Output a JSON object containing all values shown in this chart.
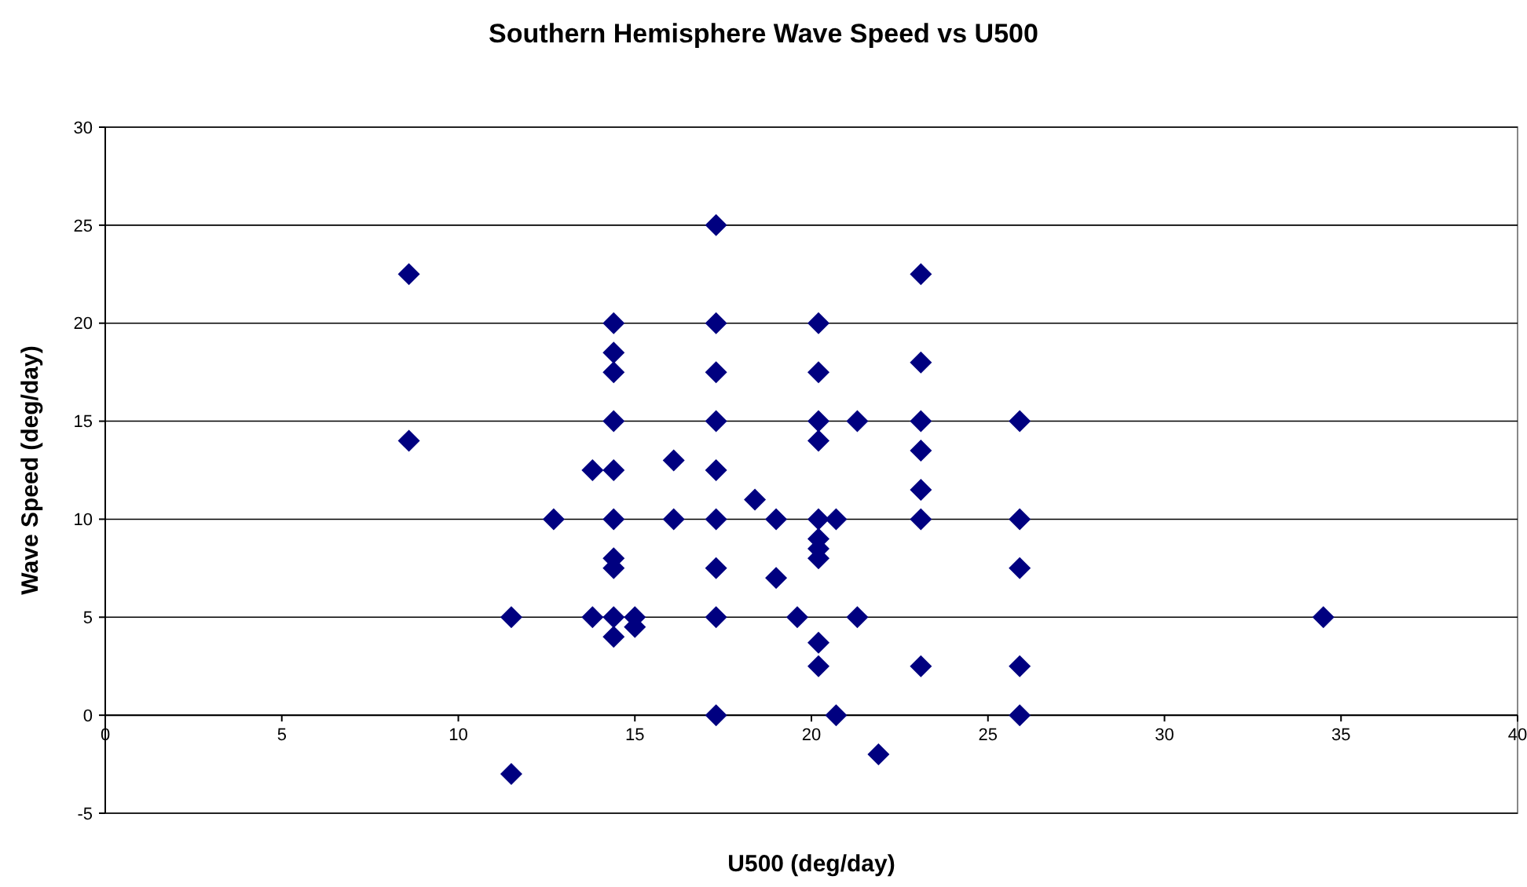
{
  "chart_data": {
    "type": "scatter",
    "title": "Southern Hemisphere Wave Speed vs U500",
    "xlabel": "U500 (deg/day)",
    "ylabel": "Wave Speed (deg/day)",
    "xlim": [
      0,
      40
    ],
    "xticks": [
      0,
      5,
      10,
      15,
      20,
      25,
      30,
      35,
      40
    ],
    "ylim": [
      -5,
      30
    ],
    "yticks": [
      -5,
      0,
      5,
      10,
      15,
      20,
      25,
      30
    ],
    "grid": "y",
    "marker": "diamond",
    "series": [
      {
        "color": "#000080",
        "x": [
          8.6,
          8.6,
          11.5,
          11.5,
          12.7,
          13.8,
          13.8,
          14.4,
          14.4,
          14.4,
          14.4,
          14.4,
          14.4,
          14.4,
          14.4,
          14.4,
          14.4,
          15.0,
          15.0,
          16.1,
          16.1,
          17.3,
          17.3,
          17.3,
          17.3,
          17.3,
          17.3,
          17.3,
          17.3,
          17.3,
          18.4,
          19.0,
          19.0,
          19.6,
          20.2,
          20.2,
          20.2,
          20.2,
          20.2,
          20.2,
          20.2,
          20.2,
          20.2,
          20.2,
          20.7,
          20.7,
          21.3,
          21.3,
          21.9,
          23.1,
          23.1,
          23.1,
          23.1,
          23.1,
          23.1,
          23.1,
          25.9,
          25.9,
          25.9,
          25.9,
          25.9,
          34.5
        ],
        "values": [
          22.5,
          14,
          5,
          -3,
          10,
          12.5,
          5,
          20,
          18.5,
          17.5,
          15,
          12.5,
          10,
          8,
          7.5,
          5,
          4,
          5,
          4.5,
          13,
          10,
          25,
          20,
          17.5,
          15,
          12.5,
          10,
          7.5,
          5,
          0,
          11,
          10,
          7,
          5,
          20,
          17.5,
          15,
          14,
          10,
          9,
          8.5,
          8,
          3.7,
          2.5,
          10,
          0,
          15,
          5,
          -2,
          22.5,
          18,
          15,
          13.5,
          11.5,
          10,
          2.5,
          15,
          10,
          7.5,
          2.5,
          0,
          5
        ]
      }
    ]
  }
}
